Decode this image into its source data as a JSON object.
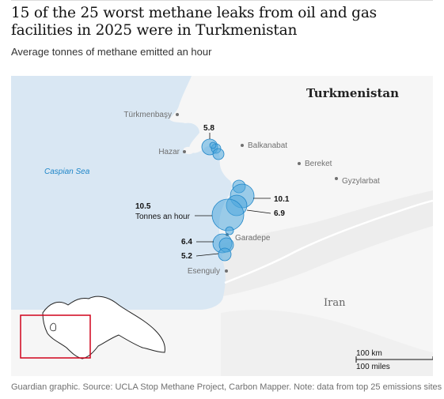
{
  "headline": "15 of the 25 worst methane leaks from oil and gas facilities in 2025 were in Turkmenistan",
  "subtitle": "Average tonnes of methane emitted an hour",
  "source": "Guardian graphic. Source: UCLA Stop Methane Project, Carbon Mapper. Note: data from top 25 emissions sites",
  "map": {
    "country_label": "Turkmenistan",
    "neighbor_label": "Iran",
    "sea_label": "Caspian Sea",
    "cities": [
      "Türkmenbaşy",
      "Hazar",
      "Balkanabat",
      "Bereket",
      "Gyzylarbat",
      "Garadepe",
      "Esenguly"
    ],
    "annotations": {
      "v58": "5.8",
      "v101": "10.1",
      "v69": "6.9",
      "v105": "10.5",
      "v105_unit": "Tonnes an hour",
      "v64": "6.4",
      "v52": "5.2"
    },
    "scale": {
      "km": "100 km",
      "miles": "100 miles"
    }
  },
  "colors": {
    "sea": "#d9e7f3",
    "land": "#f6f6f6",
    "bubble_fill": "#4fa8dc",
    "bubble_stroke": "#1f86c8",
    "locator_box": "#d0021b"
  }
}
